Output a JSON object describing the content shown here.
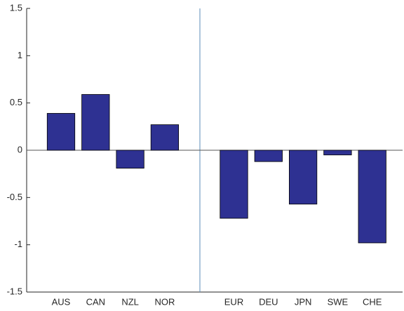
{
  "chart_data": {
    "type": "bar",
    "categories": [
      "AUS",
      "CAN",
      "NZL",
      "NOR",
      null,
      "EUR",
      "DEU",
      "JPN",
      "SWE",
      "CHE"
    ],
    "values": [
      0.39,
      0.59,
      -0.19,
      0.27,
      null,
      -0.72,
      -0.12,
      -0.57,
      -0.05,
      -0.98
    ],
    "color": "#2e3192",
    "ylim": [
      -1.5,
      1.5
    ],
    "yticks": [
      -1.5,
      -1,
      -0.5,
      0,
      0.5,
      1,
      1.5
    ],
    "grid": false
  }
}
